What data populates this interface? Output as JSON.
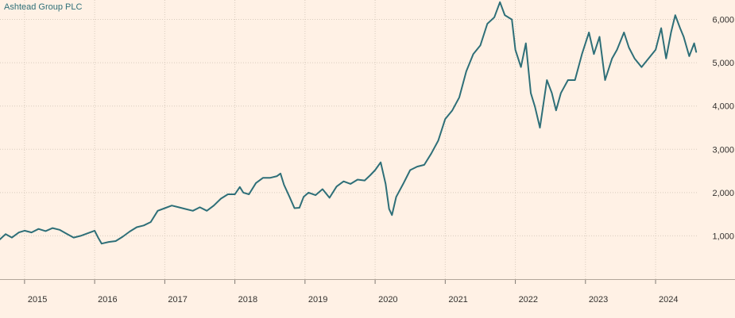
{
  "chart_data": {
    "type": "line",
    "title": "",
    "xlabel": "",
    "ylabel": "",
    "series": [
      {
        "name": "Ashtead Group PLC",
        "color": "#2e6f78",
        "points": [
          [
            2014.65,
            920
          ],
          [
            2014.73,
            1040
          ],
          [
            2014.82,
            960
          ],
          [
            2014.92,
            1080
          ],
          [
            2015.0,
            1120
          ],
          [
            2015.1,
            1080
          ],
          [
            2015.2,
            1160
          ],
          [
            2015.3,
            1110
          ],
          [
            2015.4,
            1180
          ],
          [
            2015.5,
            1140
          ],
          [
            2015.6,
            1050
          ],
          [
            2015.7,
            960
          ],
          [
            2015.8,
            1000
          ],
          [
            2015.9,
            1060
          ],
          [
            2016.0,
            1120
          ],
          [
            2016.05,
            960
          ],
          [
            2016.1,
            820
          ],
          [
            2016.2,
            860
          ],
          [
            2016.3,
            880
          ],
          [
            2016.4,
            980
          ],
          [
            2016.5,
            1100
          ],
          [
            2016.6,
            1200
          ],
          [
            2016.7,
            1240
          ],
          [
            2016.8,
            1320
          ],
          [
            2016.9,
            1580
          ],
          [
            2017.0,
            1640
          ],
          [
            2017.1,
            1700
          ],
          [
            2017.2,
            1660
          ],
          [
            2017.3,
            1620
          ],
          [
            2017.4,
            1580
          ],
          [
            2017.5,
            1660
          ],
          [
            2017.6,
            1580
          ],
          [
            2017.7,
            1700
          ],
          [
            2017.8,
            1860
          ],
          [
            2017.9,
            1960
          ],
          [
            2018.0,
            1960
          ],
          [
            2018.07,
            2130
          ],
          [
            2018.12,
            2000
          ],
          [
            2018.2,
            1960
          ],
          [
            2018.3,
            2220
          ],
          [
            2018.4,
            2340
          ],
          [
            2018.5,
            2340
          ],
          [
            2018.6,
            2380
          ],
          [
            2018.65,
            2440
          ],
          [
            2018.7,
            2180
          ],
          [
            2018.78,
            1900
          ],
          [
            2018.85,
            1640
          ],
          [
            2018.92,
            1650
          ],
          [
            2018.98,
            1900
          ],
          [
            2019.05,
            2000
          ],
          [
            2019.15,
            1940
          ],
          [
            2019.25,
            2080
          ],
          [
            2019.35,
            1880
          ],
          [
            2019.45,
            2140
          ],
          [
            2019.55,
            2260
          ],
          [
            2019.65,
            2200
          ],
          [
            2019.75,
            2300
          ],
          [
            2019.85,
            2280
          ],
          [
            2019.93,
            2400
          ],
          [
            2020.0,
            2520
          ],
          [
            2020.08,
            2700
          ],
          [
            2020.15,
            2200
          ],
          [
            2020.2,
            1620
          ],
          [
            2020.24,
            1480
          ],
          [
            2020.3,
            1900
          ],
          [
            2020.4,
            2200
          ],
          [
            2020.5,
            2520
          ],
          [
            2020.6,
            2600
          ],
          [
            2020.7,
            2640
          ],
          [
            2020.8,
            2900
          ],
          [
            2020.9,
            3200
          ],
          [
            2021.0,
            3700
          ],
          [
            2021.1,
            3900
          ],
          [
            2021.2,
            4200
          ],
          [
            2021.3,
            4800
          ],
          [
            2021.4,
            5200
          ],
          [
            2021.5,
            5400
          ],
          [
            2021.6,
            5900
          ],
          [
            2021.7,
            6050
          ],
          [
            2021.78,
            6400
          ],
          [
            2021.85,
            6100
          ],
          [
            2021.95,
            6000
          ],
          [
            2022.0,
            5300
          ],
          [
            2022.08,
            4900
          ],
          [
            2022.15,
            5450
          ],
          [
            2022.22,
            4300
          ],
          [
            2022.28,
            3980
          ],
          [
            2022.35,
            3500
          ],
          [
            2022.45,
            4600
          ],
          [
            2022.52,
            4300
          ],
          [
            2022.58,
            3900
          ],
          [
            2022.65,
            4300
          ],
          [
            2022.75,
            4600
          ],
          [
            2022.85,
            4600
          ],
          [
            2022.95,
            5200
          ],
          [
            2023.05,
            5700
          ],
          [
            2023.12,
            5200
          ],
          [
            2023.2,
            5600
          ],
          [
            2023.28,
            4600
          ],
          [
            2023.38,
            5100
          ],
          [
            2023.45,
            5300
          ],
          [
            2023.55,
            5700
          ],
          [
            2023.62,
            5350
          ],
          [
            2023.7,
            5100
          ],
          [
            2023.8,
            4900
          ],
          [
            2023.9,
            5100
          ],
          [
            2024.0,
            5300
          ],
          [
            2024.08,
            5800
          ],
          [
            2024.15,
            5100
          ],
          [
            2024.22,
            5700
          ],
          [
            2024.28,
            6100
          ],
          [
            2024.35,
            5800
          ],
          [
            2024.4,
            5600
          ],
          [
            2024.48,
            5150
          ],
          [
            2024.55,
            5450
          ],
          [
            2024.58,
            5250
          ]
        ]
      }
    ],
    "xlim": [
      2014.65,
      2024.6
    ],
    "ylim": [
      0,
      6450
    ],
    "x_ticks": [
      2015,
      2016,
      2017,
      2018,
      2019,
      2020,
      2021,
      2022,
      2023,
      2024
    ],
    "x_tick_labels": [
      "2015",
      "2016",
      "2017",
      "2018",
      "2019",
      "2020",
      "2021",
      "2022",
      "2023",
      "2024"
    ],
    "y_ticks": [
      1000,
      2000,
      3000,
      4000,
      5000,
      6000
    ],
    "y_tick_labels": [
      "1,000",
      "2,000",
      "3,000",
      "4,000",
      "5,000",
      "6,000"
    ],
    "grid": true,
    "legend_position": "top-left",
    "colors": {
      "background": "#fff1e5",
      "grid": "#d9cbbd",
      "text": "#33302e"
    }
  }
}
